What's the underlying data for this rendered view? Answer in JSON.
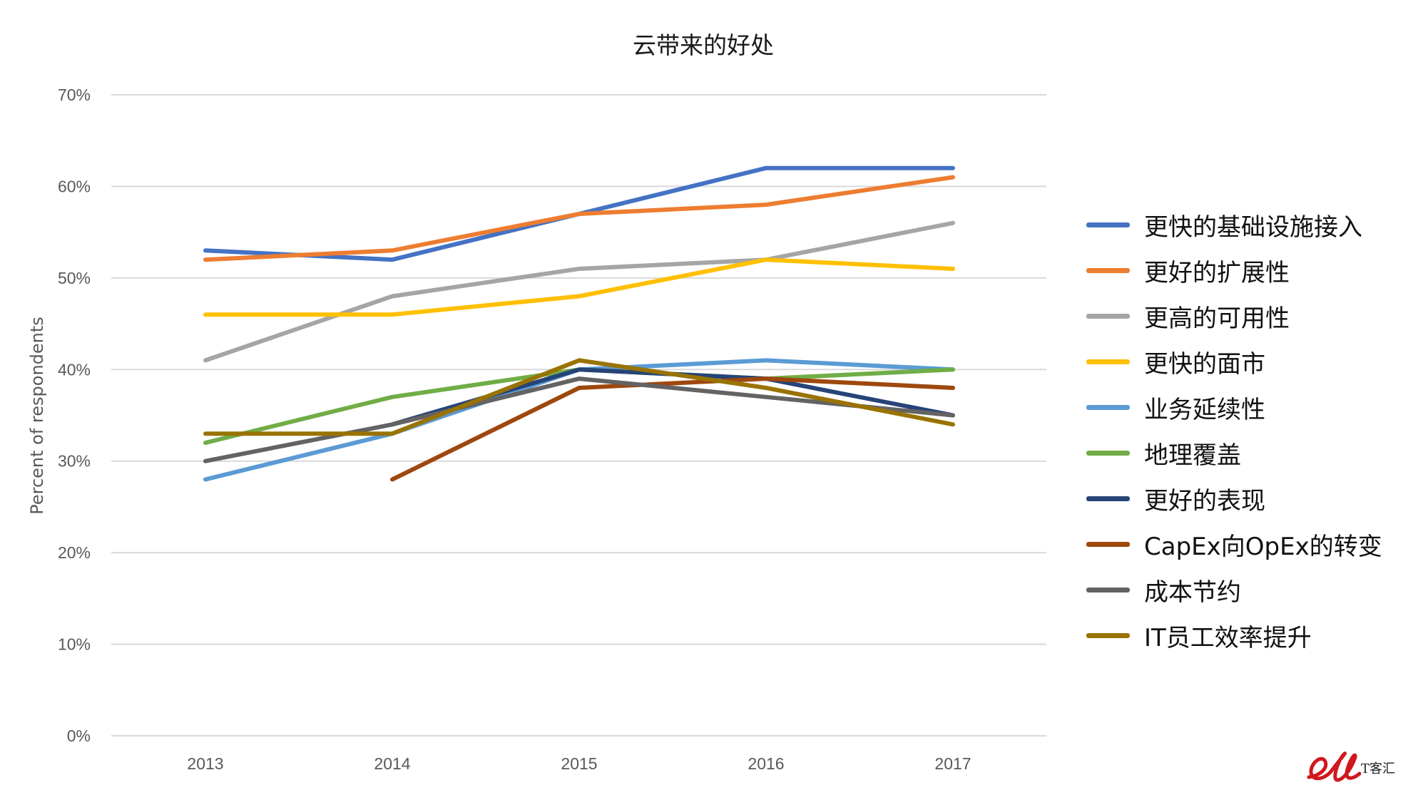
{
  "chart_data": {
    "type": "line",
    "title": "云带来的好处",
    "ylabel": "Percent of respondents",
    "categories": [
      "2013",
      "2014",
      "2015",
      "2016",
      "2017"
    ],
    "ylim": [
      0,
      70
    ],
    "yticks": [
      0,
      10,
      20,
      30,
      40,
      50,
      60,
      70
    ],
    "ytick_labels": [
      "0%",
      "10%",
      "20%",
      "30%",
      "40%",
      "50%",
      "60%",
      "70%"
    ],
    "grid": true,
    "legend_position": "right",
    "series": [
      {
        "name": "更快的基础设施接入",
        "color": "#4472C4",
        "values": [
          53,
          52,
          57,
          62,
          62
        ]
      },
      {
        "name": "更好的扩展性",
        "color": "#ED7D31",
        "values": [
          52,
          53,
          57,
          58,
          61
        ]
      },
      {
        "name": "更高的可用性",
        "color": "#A5A5A5",
        "values": [
          41,
          48,
          51,
          52,
          56
        ]
      },
      {
        "name": "更快的面市",
        "color": "#FFC000",
        "values": [
          46,
          46,
          48,
          52,
          51
        ]
      },
      {
        "name": "业务延续性",
        "color": "#5B9BD5",
        "values": [
          28,
          33,
          40,
          41,
          40
        ]
      },
      {
        "name": "地理覆盖",
        "color": "#70AD47",
        "values": [
          32,
          37,
          40,
          39,
          40
        ]
      },
      {
        "name": "更好的表现",
        "color": "#264478",
        "values": [
          null,
          34,
          40,
          39,
          35
        ]
      },
      {
        "name": "CapEx向OpEx的转变",
        "color": "#9E480E",
        "values": [
          null,
          28,
          38,
          39,
          38
        ]
      },
      {
        "name": "成本节约",
        "color": "#636363",
        "values": [
          30,
          34,
          39,
          37,
          35
        ]
      },
      {
        "name": "IT员工效率提升",
        "color": "#997300",
        "values": [
          33,
          33,
          41,
          38,
          34
        ]
      }
    ]
  },
  "watermark": {
    "text": "T客汇",
    "logo_color": "#D0181F"
  }
}
